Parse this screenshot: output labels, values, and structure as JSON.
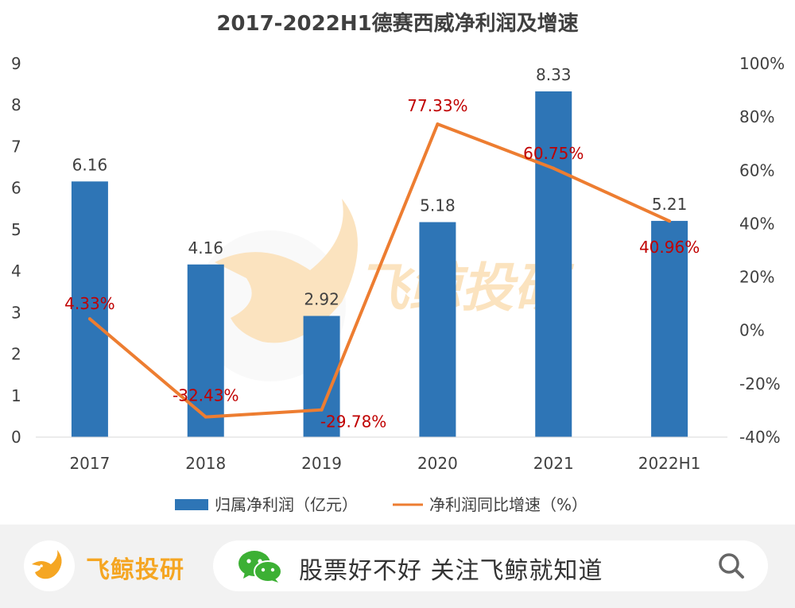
{
  "chart_data": {
    "type": "bar+line",
    "title": "2017-2022H1德赛西威净利润及增速",
    "categories": [
      "2017",
      "2018",
      "2019",
      "2020",
      "2021",
      "2022H1"
    ],
    "series": [
      {
        "name": "归属净利润（亿元）",
        "type": "bar",
        "axis": "left",
        "values": [
          6.16,
          4.16,
          2.92,
          5.18,
          8.33,
          5.21
        ],
        "labels": [
          "6.16",
          "4.16",
          "2.92",
          "5.18",
          "8.33",
          "5.21"
        ],
        "color": "#2e75b6"
      },
      {
        "name": "净利润同比增速（%）",
        "type": "line",
        "axis": "right",
        "values": [
          4.33,
          -32.43,
          -29.78,
          77.33,
          60.75,
          40.96
        ],
        "labels": [
          "4.33%",
          "-32.43%",
          "-29.78%",
          "77.33%",
          "60.75%",
          "40.96%"
        ],
        "color": "#ed7d31",
        "label_color": "#c00000"
      }
    ],
    "y_left": {
      "min": 0,
      "max": 9,
      "ticks": [
        "0",
        "1",
        "2",
        "3",
        "4",
        "5",
        "6",
        "7",
        "8",
        "9"
      ]
    },
    "y_right": {
      "min": -40,
      "max": 100,
      "ticks": [
        "-40%",
        "-20%",
        "0%",
        "20%",
        "40%",
        "60%",
        "80%",
        "100%"
      ]
    },
    "grid": false,
    "legend_position": "bottom"
  },
  "watermark": {
    "text": "飞鲸投研"
  },
  "footer": {
    "brand": "飞鲸投研",
    "tagline": "股票好不好 关注飞鲸就知道",
    "icons": [
      "whale-logo-icon",
      "wechat-icon",
      "search-icon"
    ],
    "accent_color": "#f5a623"
  }
}
